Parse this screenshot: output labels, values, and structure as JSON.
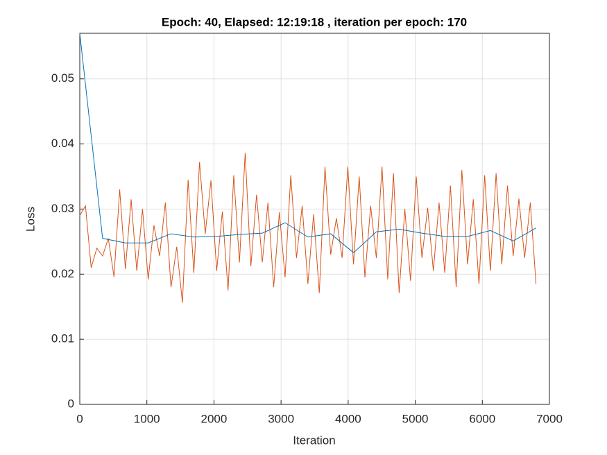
{
  "chart_data": {
    "type": "line",
    "title": "Epoch: 40, Elapsed: 12:19:18  , iteration per epoch: 170",
    "x_label": "Iteration",
    "y_label": "Loss",
    "xlim": [
      0,
      7000
    ],
    "xticks": [
      0,
      1000,
      2000,
      3000,
      4000,
      5000,
      6000,
      7000
    ],
    "ylim": [
      0,
      0.057
    ],
    "yticks": [
      0,
      0.01,
      0.02,
      0.03,
      0.04,
      0.05
    ],
    "grid": true,
    "series": [
      {
        "color": "#d95319",
        "x": [
          0,
          85,
          170,
          255,
          340,
          425,
          510,
          595,
          680,
          765,
          850,
          935,
          1020,
          1105,
          1190,
          1275,
          1360,
          1445,
          1530,
          1615,
          1700,
          1785,
          1870,
          1955,
          2040,
          2125,
          2210,
          2295,
          2380,
          2465,
          2550,
          2635,
          2720,
          2805,
          2890,
          2975,
          3060,
          3145,
          3230,
          3315,
          3400,
          3485,
          3570,
          3655,
          3740,
          3825,
          3910,
          3995,
          4080,
          4165,
          4250,
          4335,
          4420,
          4505,
          4590,
          4675,
          4760,
          4845,
          4930,
          5015,
          5100,
          5185,
          5270,
          5355,
          5440,
          5525,
          5610,
          5695,
          5780,
          5865,
          5950,
          6035,
          6120,
          6205,
          6290,
          6375,
          6460,
          6545,
          6630,
          6715,
          6800
        ],
        "values": [
          0.029,
          0.0305,
          0.021,
          0.024,
          0.0228,
          0.0255,
          0.0196,
          0.033,
          0.0208,
          0.0315,
          0.0205,
          0.03,
          0.0192,
          0.0275,
          0.0228,
          0.031,
          0.018,
          0.0242,
          0.0156,
          0.0345,
          0.0202,
          0.0372,
          0.0262,
          0.0344,
          0.0205,
          0.0296,
          0.0175,
          0.0352,
          0.0218,
          0.0386,
          0.0212,
          0.0322,
          0.0218,
          0.031,
          0.018,
          0.0295,
          0.0195,
          0.0352,
          0.0225,
          0.0305,
          0.0185,
          0.0292,
          0.0171,
          0.0365,
          0.023,
          0.0286,
          0.0225,
          0.0365,
          0.0215,
          0.035,
          0.0195,
          0.0305,
          0.0225,
          0.0365,
          0.0192,
          0.0355,
          0.0171,
          0.03,
          0.019,
          0.035,
          0.0225,
          0.0302,
          0.0205,
          0.031,
          0.0202,
          0.0336,
          0.018,
          0.036,
          0.0215,
          0.0315,
          0.0185,
          0.0352,
          0.0205,
          0.0355,
          0.0215,
          0.0336,
          0.0228,
          0.0316,
          0.0225,
          0.031,
          0.0185
        ]
      },
      {
        "color": "#0072bd",
        "x": [
          0,
          340,
          680,
          1020,
          1360,
          1700,
          2040,
          2380,
          2720,
          3060,
          3400,
          3740,
          4080,
          4420,
          4760,
          5100,
          5440,
          5780,
          6120,
          6460,
          6800
        ],
        "values": [
          0.057,
          0.0255,
          0.0248,
          0.0248,
          0.0262,
          0.0257,
          0.0258,
          0.0261,
          0.0263,
          0.0279,
          0.0257,
          0.0262,
          0.0233,
          0.0265,
          0.0269,
          0.0263,
          0.0258,
          0.0258,
          0.0267,
          0.0251,
          0.0271
        ]
      }
    ]
  }
}
